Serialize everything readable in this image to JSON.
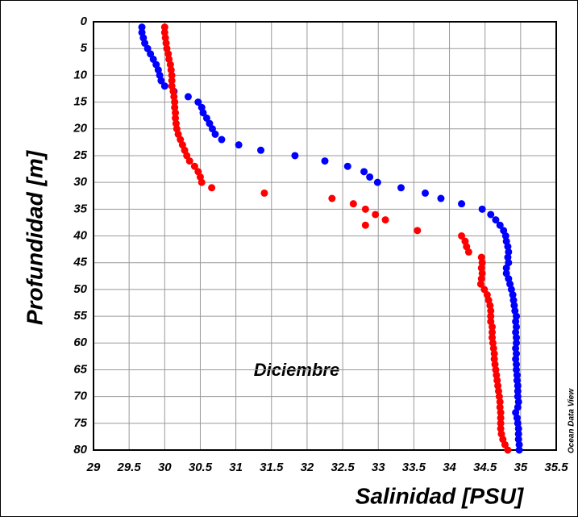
{
  "chart_data": {
    "type": "scatter",
    "xlabel": "Salinidad [PSU]",
    "ylabel": "Profundidad [m]",
    "annotations": [
      "Diciembre",
      "Ocean Data View"
    ],
    "xlim": [
      29,
      35.5
    ],
    "xticks": [
      29,
      29.5,
      30,
      30.5,
      31,
      31.5,
      32,
      32.5,
      33,
      33.5,
      34,
      34.5,
      35,
      35.5
    ],
    "ylim": [
      0,
      80
    ],
    "y_inverted": true,
    "yticks": [
      0,
      5,
      10,
      15,
      20,
      25,
      30,
      35,
      40,
      45,
      50,
      55,
      60,
      65,
      70,
      75,
      80
    ],
    "grid": true,
    "series": [
      {
        "color": "#0000ff",
        "x": [
          29.68,
          29.68,
          29.7,
          29.72,
          29.76,
          29.8,
          29.84,
          29.88,
          29.91,
          29.93,
          29.95,
          30.0,
          30.13,
          30.33,
          30.47,
          30.52,
          30.54,
          30.59,
          30.63,
          30.67,
          30.71,
          30.8,
          31.04,
          31.35,
          31.83,
          32.25,
          32.57,
          32.8,
          32.88,
          32.99,
          33.32,
          33.66,
          33.88,
          34.17,
          34.46,
          34.58,
          34.65,
          34.71,
          34.76,
          34.79,
          34.8,
          34.82,
          34.83,
          34.82,
          34.83,
          34.8,
          34.8,
          34.83,
          34.85,
          34.87,
          34.89,
          34.9,
          34.91,
          34.92,
          34.94,
          34.93,
          34.94,
          34.93,
          34.94,
          34.94,
          34.93,
          34.94,
          34.93,
          34.94,
          34.94,
          34.95,
          34.95,
          34.96,
          34.96,
          34.96,
          34.97,
          34.96,
          34.93,
          34.95,
          34.96,
          34.97,
          34.97,
          34.97,
          34.98,
          34.98
        ],
        "y": [
          1,
          2,
          3,
          4,
          5,
          6,
          7,
          8,
          9,
          10,
          11,
          12,
          13,
          14,
          15,
          16,
          17,
          18,
          19,
          20,
          21,
          22,
          23,
          24,
          25,
          26,
          27,
          28,
          29,
          30,
          31,
          32,
          33,
          34,
          35,
          36,
          37,
          38,
          39,
          40,
          41,
          42,
          43,
          44,
          45,
          46,
          47,
          48,
          49,
          50,
          51,
          52,
          53,
          54,
          55,
          56,
          57,
          58,
          59,
          60,
          61,
          62,
          63,
          64,
          65,
          66,
          67,
          68,
          69,
          70,
          71,
          72,
          73,
          74,
          75,
          76,
          77,
          78,
          79,
          80
        ]
      },
      {
        "color": "#ff0000",
        "x": [
          30.0,
          30.0,
          30.01,
          30.02,
          30.03,
          30.05,
          30.06,
          30.08,
          30.09,
          30.1,
          30.1,
          30.1,
          30.12,
          30.13,
          30.14,
          30.14,
          30.15,
          30.15,
          30.16,
          30.17,
          30.19,
          30.22,
          30.25,
          30.28,
          30.31,
          30.35,
          30.42,
          30.47,
          30.5,
          30.52,
          30.66,
          31.4,
          32.35,
          32.65,
          32.82,
          32.96,
          33.1,
          32.82,
          33.55,
          34.17,
          34.22,
          34.24,
          34.27,
          34.45,
          34.46,
          34.45,
          34.46,
          34.45,
          34.44,
          34.49,
          34.53,
          34.55,
          34.57,
          34.58,
          34.58,
          34.58,
          34.6,
          34.6,
          34.6,
          34.61,
          34.62,
          34.63,
          34.63,
          34.64,
          34.65,
          34.66,
          34.67,
          34.68,
          34.69,
          34.7,
          34.71,
          34.71,
          34.72,
          34.72,
          34.72,
          34.72,
          34.73,
          34.75,
          34.78,
          34.82
        ],
        "y": [
          1,
          2,
          3,
          4,
          5,
          6,
          7,
          8,
          9,
          10,
          11,
          12,
          13,
          14,
          15,
          16,
          17,
          18,
          19,
          20,
          21,
          22,
          23,
          24,
          25,
          26,
          27,
          28,
          29,
          30,
          31,
          32,
          33,
          34,
          35,
          36,
          37,
          38,
          39,
          40,
          41,
          42,
          43,
          44,
          45,
          46,
          47,
          48,
          49,
          50,
          51,
          52,
          53,
          54,
          55,
          56,
          57,
          58,
          59,
          60,
          61,
          62,
          63,
          64,
          65,
          66,
          67,
          68,
          69,
          70,
          71,
          72,
          73,
          74,
          75,
          76,
          77,
          78,
          79,
          80
        ]
      }
    ]
  }
}
